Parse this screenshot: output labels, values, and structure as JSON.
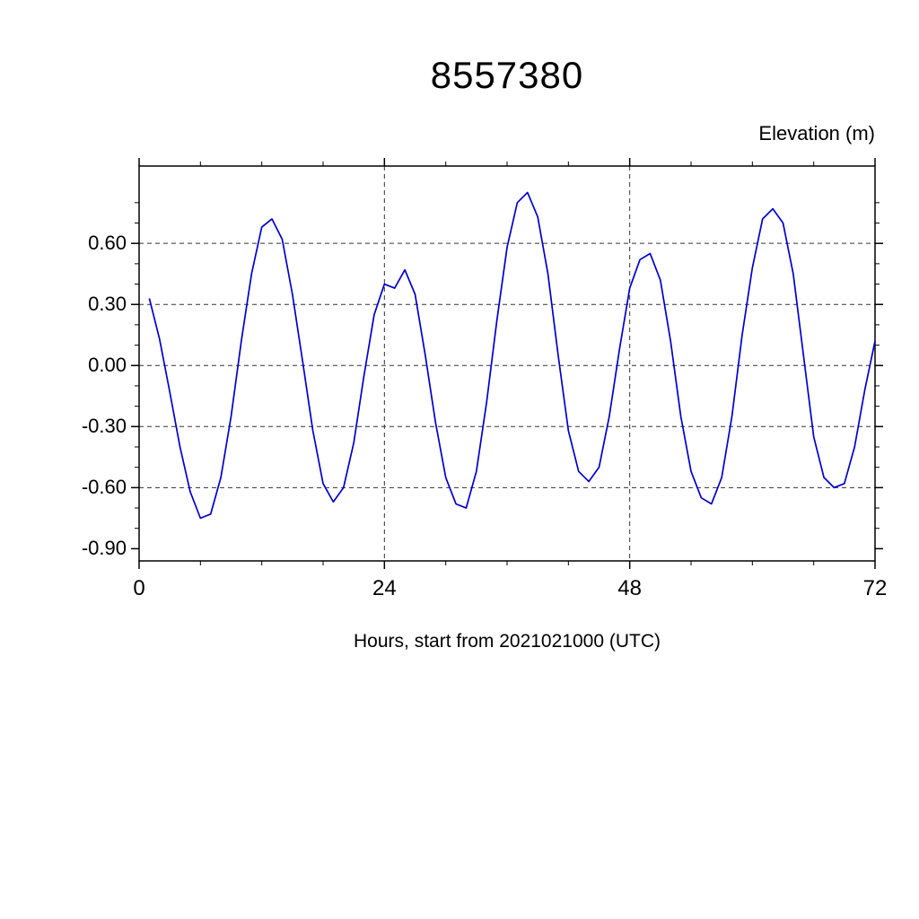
{
  "chart_data": {
    "type": "line",
    "title": "8557380",
    "ylabel": "Elevation (m)",
    "xlabel": "Hours, start from 2021021000 (UTC)",
    "line_color": "#0000cc",
    "grid": "dashed",
    "legend": "none",
    "xlim": [
      0,
      72
    ],
    "ylim": [
      -0.96,
      0.98
    ],
    "x_major_ticks": [
      0,
      24,
      48,
      72
    ],
    "x_tick_labels": [
      "0",
      "24",
      "48",
      "72"
    ],
    "x_minor_step": 6,
    "y_major_ticks": [
      -0.9,
      -0.6,
      -0.3,
      0,
      0.3,
      0.6
    ],
    "y_tick_labels": [
      "-0.90",
      "-0.60",
      "-0.30",
      "0.00",
      "0.30",
      "0.60"
    ],
    "y_minor_step": 0.1,
    "x_grid": [
      24,
      48
    ],
    "y_grid": [
      -0.6,
      -0.3,
      0,
      0.3,
      0.6
    ],
    "x": [
      1,
      2,
      3,
      4,
      5,
      6,
      7,
      8,
      9,
      10,
      11,
      12,
      13,
      14,
      15,
      16,
      17,
      18,
      19,
      20,
      21,
      22,
      23,
      24,
      25,
      26,
      27,
      28,
      29,
      30,
      31,
      32,
      33,
      34,
      35,
      36,
      37,
      38,
      39,
      40,
      41,
      42,
      43,
      44,
      45,
      46,
      47,
      48,
      49,
      50,
      51,
      52,
      53,
      54,
      55,
      56,
      57,
      58,
      59,
      60,
      61,
      62,
      63,
      64,
      65,
      66,
      67,
      68,
      69,
      70,
      71,
      72
    ],
    "y": [
      0.33,
      0.13,
      -0.13,
      -0.4,
      -0.62,
      -0.75,
      -0.73,
      -0.55,
      -0.25,
      0.12,
      0.45,
      0.68,
      0.72,
      0.62,
      0.35,
      0.02,
      -0.32,
      -0.58,
      -0.67,
      -0.6,
      -0.38,
      -0.05,
      0.25,
      0.4,
      0.38,
      0.47,
      0.35,
      0.05,
      -0.28,
      -0.55,
      -0.68,
      -0.7,
      -0.52,
      -0.18,
      0.22,
      0.58,
      0.8,
      0.85,
      0.73,
      0.45,
      0.05,
      -0.32,
      -0.52,
      -0.57,
      -0.5,
      -0.25,
      0.08,
      0.38,
      0.52,
      0.55,
      0.42,
      0.12,
      -0.25,
      -0.52,
      -0.65,
      -0.68,
      -0.55,
      -0.25,
      0.15,
      0.48,
      0.72,
      0.77,
      0.7,
      0.45,
      0.05,
      -0.35,
      -0.55,
      -0.6,
      -0.58,
      -0.4,
      -0.12,
      0.12
    ]
  }
}
